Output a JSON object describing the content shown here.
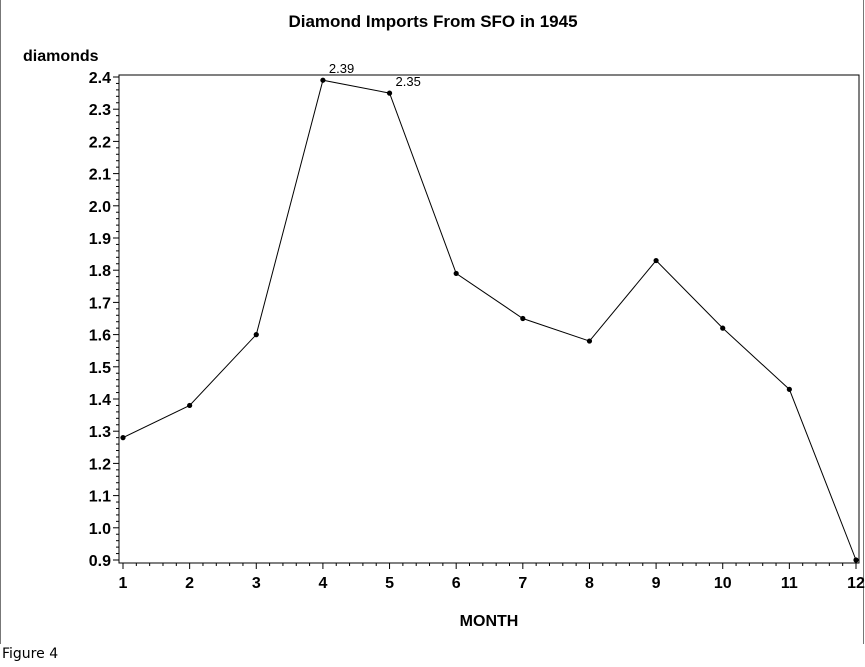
{
  "caption": "Figure 4",
  "chart_data": {
    "type": "line",
    "title": "Diamond Imports From SFO in 1945",
    "ylabel": "diamonds",
    "xlabel": "MONTH",
    "x": [
      1,
      2,
      3,
      4,
      5,
      6,
      7,
      8,
      9,
      10,
      11,
      12
    ],
    "y": [
      1.28,
      1.38,
      1.6,
      2.39,
      2.35,
      1.79,
      1.65,
      1.58,
      1.83,
      1.62,
      1.43,
      0.9
    ],
    "xlim": [
      1,
      12
    ],
    "ylim": [
      0.9,
      2.4
    ],
    "x_ticks": [
      "1",
      "2",
      "3",
      "4",
      "5",
      "6",
      "7",
      "8",
      "9",
      "10",
      "11",
      "12"
    ],
    "y_ticks": [
      "0.9",
      "1.0",
      "1.1",
      "1.2",
      "1.3",
      "1.4",
      "1.5",
      "1.6",
      "1.7",
      "1.8",
      "1.9",
      "2.0",
      "2.1",
      "2.2",
      "2.3",
      "2.4"
    ],
    "point_labels": [
      {
        "x": 4,
        "text": "2.39"
      },
      {
        "x": 5,
        "text": "2.35"
      }
    ],
    "grid": false,
    "line_color": "#000000",
    "marker_color": "#000000"
  }
}
